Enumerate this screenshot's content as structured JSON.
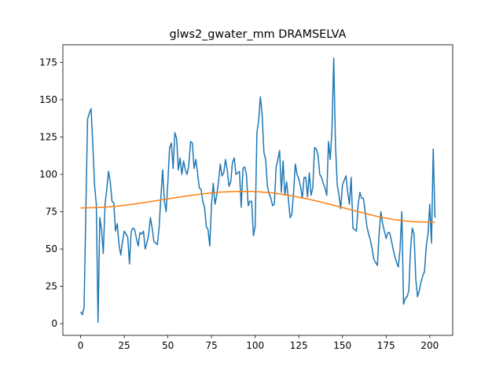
{
  "chart_data": {
    "type": "line",
    "title": "glws2_gwater_mm DRAMSELVA",
    "xlim": [
      -10.15,
      213.15
    ],
    "ylim": [
      -7.85,
      186.85
    ],
    "xticks": [
      0,
      25,
      50,
      75,
      100,
      125,
      150,
      175,
      200
    ],
    "yticks": [
      0,
      25,
      50,
      75,
      100,
      125,
      150,
      175
    ],
    "series": [
      {
        "color": "#1f77b4",
        "x": [
          0,
          1,
          2,
          3,
          4,
          5,
          6,
          7,
          8,
          9,
          10,
          11,
          12,
          13,
          14,
          15,
          16,
          17,
          18,
          19,
          20,
          21,
          22,
          23,
          24,
          25,
          26,
          27,
          28,
          29,
          30,
          31,
          32,
          33,
          34,
          35,
          36,
          37,
          38,
          39,
          40,
          41,
          42,
          43,
          44,
          45,
          46,
          47,
          48,
          49,
          50,
          51,
          52,
          53,
          54,
          55,
          56,
          57,
          58,
          59,
          60,
          61,
          62,
          63,
          64,
          65,
          66,
          67,
          68,
          69,
          70,
          71,
          72,
          73,
          74,
          75,
          76,
          77,
          78,
          79,
          80,
          81,
          82,
          83,
          84,
          85,
          86,
          87,
          88,
          89,
          90,
          91,
          92,
          93,
          94,
          95,
          96,
          97,
          98,
          99,
          100,
          101,
          102,
          103,
          104,
          105,
          106,
          107,
          108,
          109,
          110,
          111,
          112,
          113,
          114,
          115,
          116,
          117,
          118,
          119,
          120,
          121,
          122,
          123,
          124,
          125,
          126,
          127,
          128,
          129,
          130,
          131,
          132,
          133,
          134,
          135,
          136,
          137,
          138,
          139,
          140,
          141,
          142,
          143,
          144,
          145,
          146,
          147,
          148,
          149,
          150,
          151,
          152,
          153,
          154,
          155,
          156,
          157,
          158,
          159,
          160,
          161,
          162,
          163,
          164,
          165,
          166,
          167,
          168,
          169,
          170,
          171,
          172,
          173,
          174,
          175,
          176,
          177,
          178,
          179,
          180,
          181,
          182,
          183,
          184,
          185,
          186,
          187,
          188,
          189,
          190,
          191,
          192,
          193,
          194,
          195,
          196,
          197,
          198,
          199,
          200,
          201,
          202,
          203
        ],
        "values": [
          8,
          6,
          11,
          75,
          137,
          141,
          144,
          120,
          93,
          80,
          1,
          71,
          63,
          47,
          80,
          90,
          102,
          95,
          82,
          81,
          62,
          67,
          53,
          46,
          55,
          62,
          60,
          58,
          40,
          62,
          64,
          63,
          57,
          52,
          61,
          60,
          62,
          50,
          54,
          60,
          71,
          64,
          55,
          54,
          53,
          65,
          85,
          103,
          82,
          75,
          95,
          118,
          121,
          104,
          128,
          124,
          103,
          111,
          100,
          109,
          103,
          100,
          106,
          122,
          121,
          104,
          110,
          101,
          91,
          90,
          82,
          78,
          65,
          63,
          52,
          80,
          94,
          80,
          86,
          95,
          107,
          99,
          101,
          110,
          103,
          92,
          95,
          108,
          111,
          100,
          101,
          102,
          78,
          104,
          105,
          100,
          79,
          82,
          82,
          59,
          65,
          128,
          136,
          152,
          140,
          115,
          110,
          92,
          87,
          84,
          79,
          80,
          105,
          110,
          116,
          88,
          109,
          86,
          95,
          84,
          71,
          73,
          88,
          107,
          100,
          97,
          92,
          84,
          98,
          98,
          85,
          101,
          86,
          91,
          118,
          117,
          113,
          100,
          98,
          94,
          91,
          86,
          122,
          110,
          130,
          178,
          120,
          93,
          86,
          77,
          93,
          96,
          99,
          88,
          80,
          98,
          64,
          63,
          62,
          80,
          88,
          84,
          84,
          75,
          65,
          60,
          56,
          50,
          43,
          41,
          39,
          60,
          75,
          67,
          62,
          57,
          61,
          61,
          56,
          50,
          45,
          41,
          38,
          50,
          75,
          13,
          17,
          18,
          22,
          50,
          64,
          60,
          30,
          18,
          22,
          28,
          32,
          35,
          52,
          60,
          80,
          54,
          117,
          71
        ]
      },
      {
        "color": "#ff7f0e",
        "x": [
          0,
          10,
          20,
          30,
          40,
          50,
          60,
          70,
          80,
          90,
          100,
          110,
          120,
          130,
          140,
          150,
          160,
          170,
          180,
          190,
          200,
          203
        ],
        "values": [
          77.5,
          77.8,
          78.6,
          80,
          81.8,
          83.6,
          85.4,
          87,
          88.1,
          88.6,
          88.5,
          87.6,
          85.9,
          83.6,
          80.8,
          77.8,
          74.7,
          71.8,
          69.6,
          68.3,
          68,
          68.1
        ]
      }
    ]
  }
}
